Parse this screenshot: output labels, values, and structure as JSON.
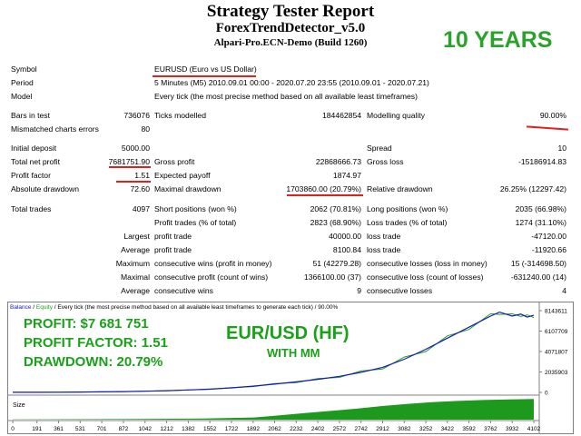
{
  "header": {
    "title": "Strategy Tester Report",
    "ea_name": "ForexTrendDetector_v5.0",
    "server": "Alpari-Pro.ECN-Demo (Build 1260)",
    "badge": "10 YEARS"
  },
  "info": {
    "symbol_label": "Symbol",
    "symbol_value": "EURUSD (Euro vs US Dollar)",
    "period_label": "Period",
    "period_value": "5 Minutes (M5) 2010.09.01 00:00 - 2020.07.20 23:55 (2010.09.01 - 2020.07.21)",
    "model_label": "Model",
    "model_value": "Every tick (the most precise method based on all available least timeframes)"
  },
  "stats": {
    "bars_label": "Bars in test",
    "bars_value": "736076",
    "ticks_label": "Ticks modelled",
    "ticks_value": "184462854",
    "quality_label": "Modelling quality",
    "quality_value": "90.00%",
    "mismatch_label": "Mismatched charts errors",
    "mismatch_value": "80",
    "deposit_label": "Initial deposit",
    "deposit_value": "5000.00",
    "spread_label": "Spread",
    "spread_value": "10",
    "netprofit_label": "Total net profit",
    "netprofit_value": "7681751.90",
    "grossprofit_label": "Gross profit",
    "grossprofit_value": "22868666.73",
    "grossloss_label": "Gross loss",
    "grossloss_value": "-15186914.83",
    "pf_label": "Profit factor",
    "pf_value": "1.51",
    "payoff_label": "Expected payoff",
    "payoff_value": "1874.97",
    "absdd_label": "Absolute drawdown",
    "absdd_value": "72.60",
    "maxdd_label": "Maximal drawdown",
    "maxdd_value": "1703860.00 (20.79%)",
    "reldd_label": "Relative drawdown",
    "reldd_value": "26.25% (12297.42)",
    "trades_label": "Total trades",
    "trades_value": "4097",
    "short_label": "Short positions (won %)",
    "short_value": "2062 (70.81%)",
    "long_label": "Long positions (won %)",
    "long_value": "2035 (66.98%)",
    "ptrades_label": "Profit trades (% of total)",
    "ptrades_value": "2823 (68.90%)",
    "ltrades_label": "Loss trades (% of total)",
    "ltrades_value": "1274 (31.10%)",
    "largest_label": "Largest",
    "largest_pt_label": "profit trade",
    "largest_pt_value": "40000.00",
    "largest_lt_label": "loss trade",
    "largest_lt_value": "-47120.00",
    "average_label": "Average",
    "average_pt_label": "profit trade",
    "average_pt_value": "8100.84",
    "average_lt_label": "loss trade",
    "average_lt_value": "-11920.66",
    "maximum_label": "Maximum",
    "max_cw_label": "consecutive wins (profit in money)",
    "max_cw_value": "51 (42279.28)",
    "max_cl_label": "consecutive losses (loss in money)",
    "max_cl_value": "15 (-314698.50)",
    "maximal_label": "Maximal",
    "mxl_cp_label": "consecutive profit (count of wins)",
    "mxl_cp_value": "1366100.00 (37)",
    "mxl_cl_label": "consecutive loss (count of losses)",
    "mxl_cl_value": "-631240.00 (14)",
    "average2_label": "Average",
    "avg_cw_label": "consecutive wins",
    "avg_cw_value": "9",
    "avg_cl_label": "consecutive losses",
    "avg_cl_value": "4"
  },
  "chart": {
    "legend_balance": "Balance",
    "legend_sep": " / ",
    "legend_equity": "Equity",
    "legend_rest": " / Every tick (the most precise method based on all available least timeframes to generate each tick) / 90.00%",
    "size_label": "Size",
    "y_ticks": [
      "8143611",
      "6107709",
      "4071807",
      "2035903",
      "0"
    ],
    "x_ticks": [
      "0",
      "191",
      "361",
      "531",
      "701",
      "872",
      "1042",
      "1212",
      "1382",
      "1552",
      "1722",
      "1892",
      "2062",
      "2232",
      "2402",
      "2572",
      "2742",
      "2912",
      "3082",
      "3252",
      "3422",
      "3592",
      "3762",
      "3932",
      "4102"
    ],
    "overlay_profit": "PROFIT: $7 681 751",
    "overlay_pf": "PROFIT FACTOR: 1.51",
    "overlay_dd": "DRAWDOWN: 20.79%",
    "overlay_pair": "EUR/USD (HF)",
    "overlay_mm": "WITH MM",
    "colors": {
      "balance": "#1a1ab4",
      "equity": "#20a020",
      "size": "#1d9a1d",
      "overlay": "#18a218"
    }
  },
  "chart_data": {
    "type": "line",
    "x": [
      0,
      191,
      361,
      531,
      701,
      872,
      1042,
      1212,
      1382,
      1552,
      1722,
      1892,
      2062,
      2232,
      2402,
      2572,
      2742,
      2912,
      3082,
      3252,
      3422,
      3592,
      3762,
      3832,
      3932,
      4000,
      4050,
      4102
    ],
    "series": [
      {
        "name": "Balance",
        "values": [
          5000,
          10000,
          20000,
          35000,
          55000,
          85000,
          120000,
          170000,
          240000,
          330000,
          450000,
          620000,
          820000,
          1050000,
          1300000,
          1600000,
          2000000,
          2500000,
          3300000,
          4300000,
          5400000,
          6500000,
          7600000,
          8000000,
          7600000,
          7800000,
          7500000,
          7681751
        ]
      }
    ],
    "size_series": {
      "x": [
        0,
        500,
        1000,
        1500,
        1900,
        2100,
        2300,
        2500,
        2700,
        2900,
        3100,
        3300,
        3500,
        3700,
        3900,
        4102
      ],
      "values": [
        0.01,
        0.02,
        0.03,
        0.05,
        0.1,
        0.2,
        0.3,
        0.4,
        0.5,
        0.62,
        0.72,
        0.8,
        0.86,
        0.9,
        0.93,
        0.95
      ]
    },
    "ylim": [
      0,
      8143611
    ],
    "xlim": [
      0,
      4102
    ],
    "grid": false,
    "legend": "top-left"
  }
}
